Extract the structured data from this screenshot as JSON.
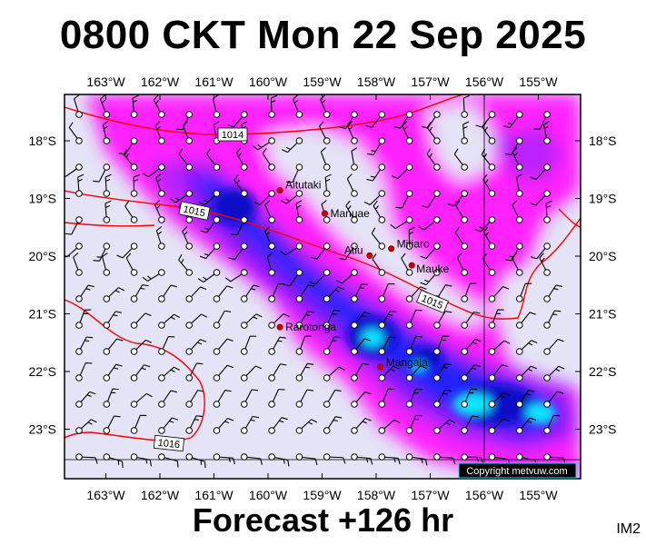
{
  "title": "0800 CKT Mon 22 Sep 2025",
  "subtitle": "Forecast +126 hr",
  "corner_tag": "IM2",
  "copyright": "Copyright metvuw.com",
  "longitude_labels": [
    "163°W",
    "162°W",
    "161°W",
    "160°W",
    "159°W",
    "158°W",
    "157°W",
    "156°W",
    "155°W"
  ],
  "latitude_labels": [
    "18°S",
    "19°S",
    "20°S",
    "21°S",
    "22°S",
    "23°S"
  ],
  "places": [
    {
      "name": "Aitutaki",
      "lon": -159.78,
      "lat": -18.86
    },
    {
      "name": "Manuae",
      "lon": -158.95,
      "lat": -19.26
    },
    {
      "name": "Mitiaro",
      "lon": -157.72,
      "lat": -19.87
    },
    {
      "name": "Atiu",
      "lon": -158.12,
      "lat": -19.99
    },
    {
      "name": "Mauke",
      "lon": -157.34,
      "lat": -20.16
    },
    {
      "name": "Rarotonga",
      "lon": -159.78,
      "lat": -21.23
    },
    {
      "name": "Mangaia",
      "lon": -157.92,
      "lat": -21.92
    }
  ],
  "isobars": [
    {
      "label": "1014"
    },
    {
      "label": "1015"
    },
    {
      "label": "1015"
    },
    {
      "label": "1016"
    }
  ],
  "colors": {
    "background_field": "#e4e4f6",
    "magenta": "#ff22ff",
    "violet": "#bb22ff",
    "purple": "#7a1cff",
    "blue": "#2222ff",
    "deep_blue": "#0a0ac8",
    "cyan": "#11e6ff",
    "isobar": "#ff0000"
  }
}
